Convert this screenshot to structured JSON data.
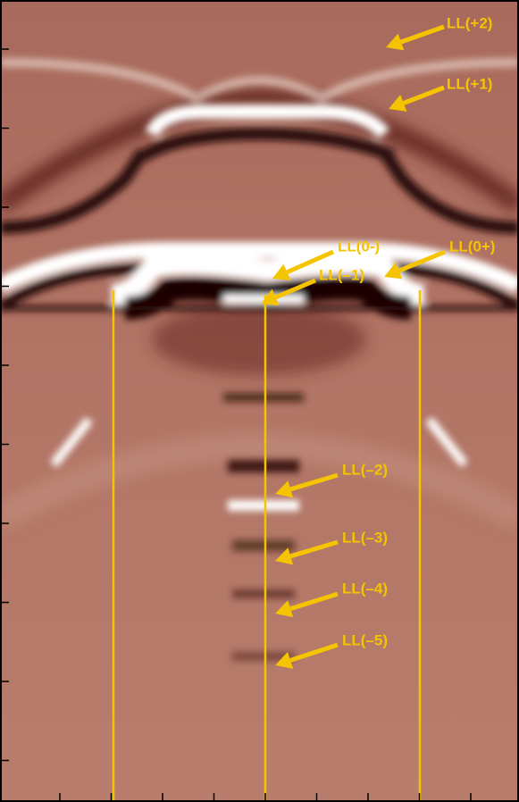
{
  "labels": [
    "LL(+2)",
    "LL(+1)",
    "LL(0-)",
    "LL(0+)",
    "LL(–1)",
    "LL(–2)",
    "LL(–3)",
    "LL(–4)",
    "LL(–5)"
  ]
}
